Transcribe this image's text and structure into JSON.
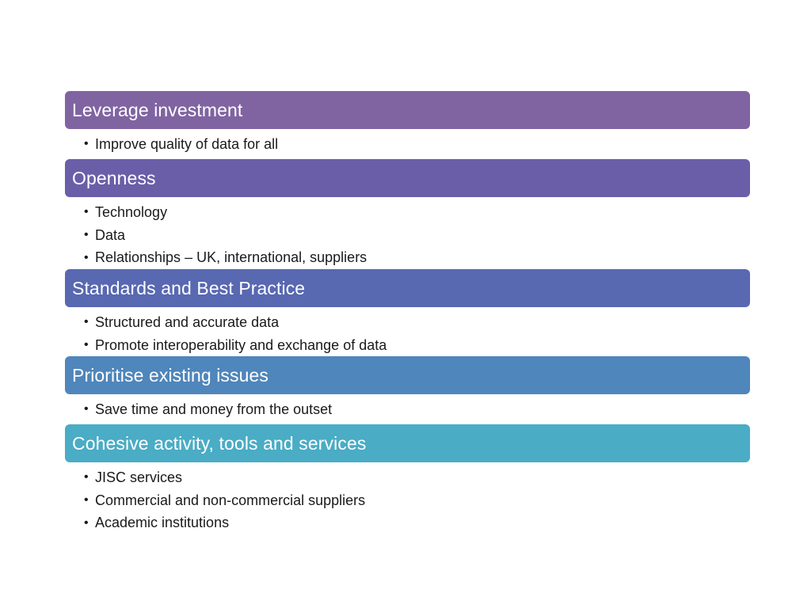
{
  "sections": [
    {
      "title": "Leverage investment",
      "color": "#8064a2",
      "bullets": [
        "Improve quality of data for all"
      ]
    },
    {
      "title": "Openness",
      "color": "#6b5ea8",
      "bullets": [
        "Technology",
        "Data",
        "Relationships – UK, international, suppliers"
      ]
    },
    {
      "title": "Standards and Best Practice",
      "color": "#5868b1",
      "bullets": [
        "Structured and accurate data",
        "Promote interoperability and exchange of data"
      ]
    },
    {
      "title": "Prioritise existing issues",
      "color": "#4f86bb",
      "bullets": [
        "Save time and money from the outset"
      ]
    },
    {
      "title": "Cohesive activity, tools and services",
      "color": "#4aacc5",
      "bullets": [
        "JISC services",
        "Commercial and non-commercial suppliers",
        "Academic institutions"
      ]
    }
  ],
  "bullet_glyph": "•"
}
